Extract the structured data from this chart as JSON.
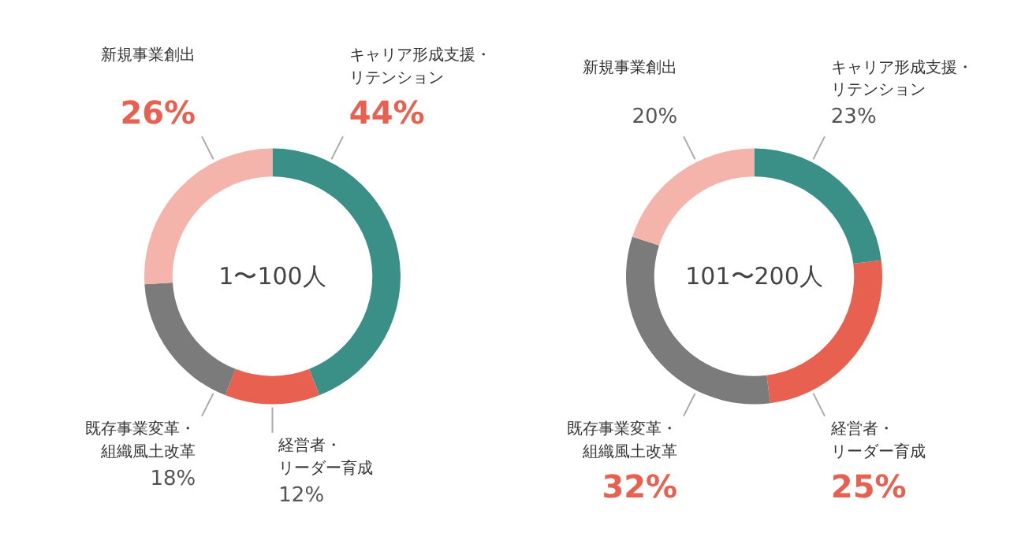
{
  "chart_data": [
    {
      "type": "donut",
      "categories": [
        "キャリア形成支援・リテンション",
        "経営者・リーダー育成",
        "既存事業変革・組織風土改革",
        "新規事業創出"
      ],
      "values": [
        44,
        12,
        18,
        26
      ],
      "colors": [
        "#3a9087",
        "#e8604f",
        "#7b7b7b",
        "#f4b3ab"
      ],
      "value_labels": [
        "44%",
        "12%",
        "18%",
        "26%"
      ],
      "annotations": [
        "1〜100人"
      ]
    },
    {
      "type": "donut",
      "categories": [
        "キャリア形成支援・リテンション",
        "経営者・リーダー育成",
        "既存事業変革・組織風土改革",
        "新規事業創出"
      ],
      "values": [
        23,
        25,
        32,
        20
      ],
      "colors": [
        "#3a9087",
        "#e8604f",
        "#7b7b7b",
        "#f4b3ab"
      ],
      "value_labels": [
        "23%",
        "25%",
        "32%",
        "20%"
      ],
      "annotations": [
        "101〜200人"
      ]
    }
  ]
}
